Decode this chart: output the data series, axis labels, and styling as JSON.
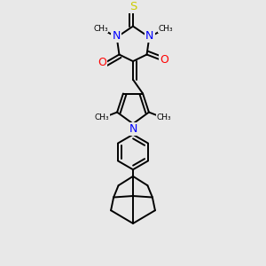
{
  "bg_color": "#e8e8e8",
  "bond_color": "#000000",
  "bond_width": 1.4,
  "N_color": "#0000ff",
  "O_color": "#ff0000",
  "S_color": "#cccc00",
  "font_size": 8.0,
  "fig_size": [
    3.0,
    3.0
  ],
  "dpi": 100,
  "xlim": [
    0.2,
    0.8
  ],
  "ylim": [
    0.02,
    1.0
  ]
}
